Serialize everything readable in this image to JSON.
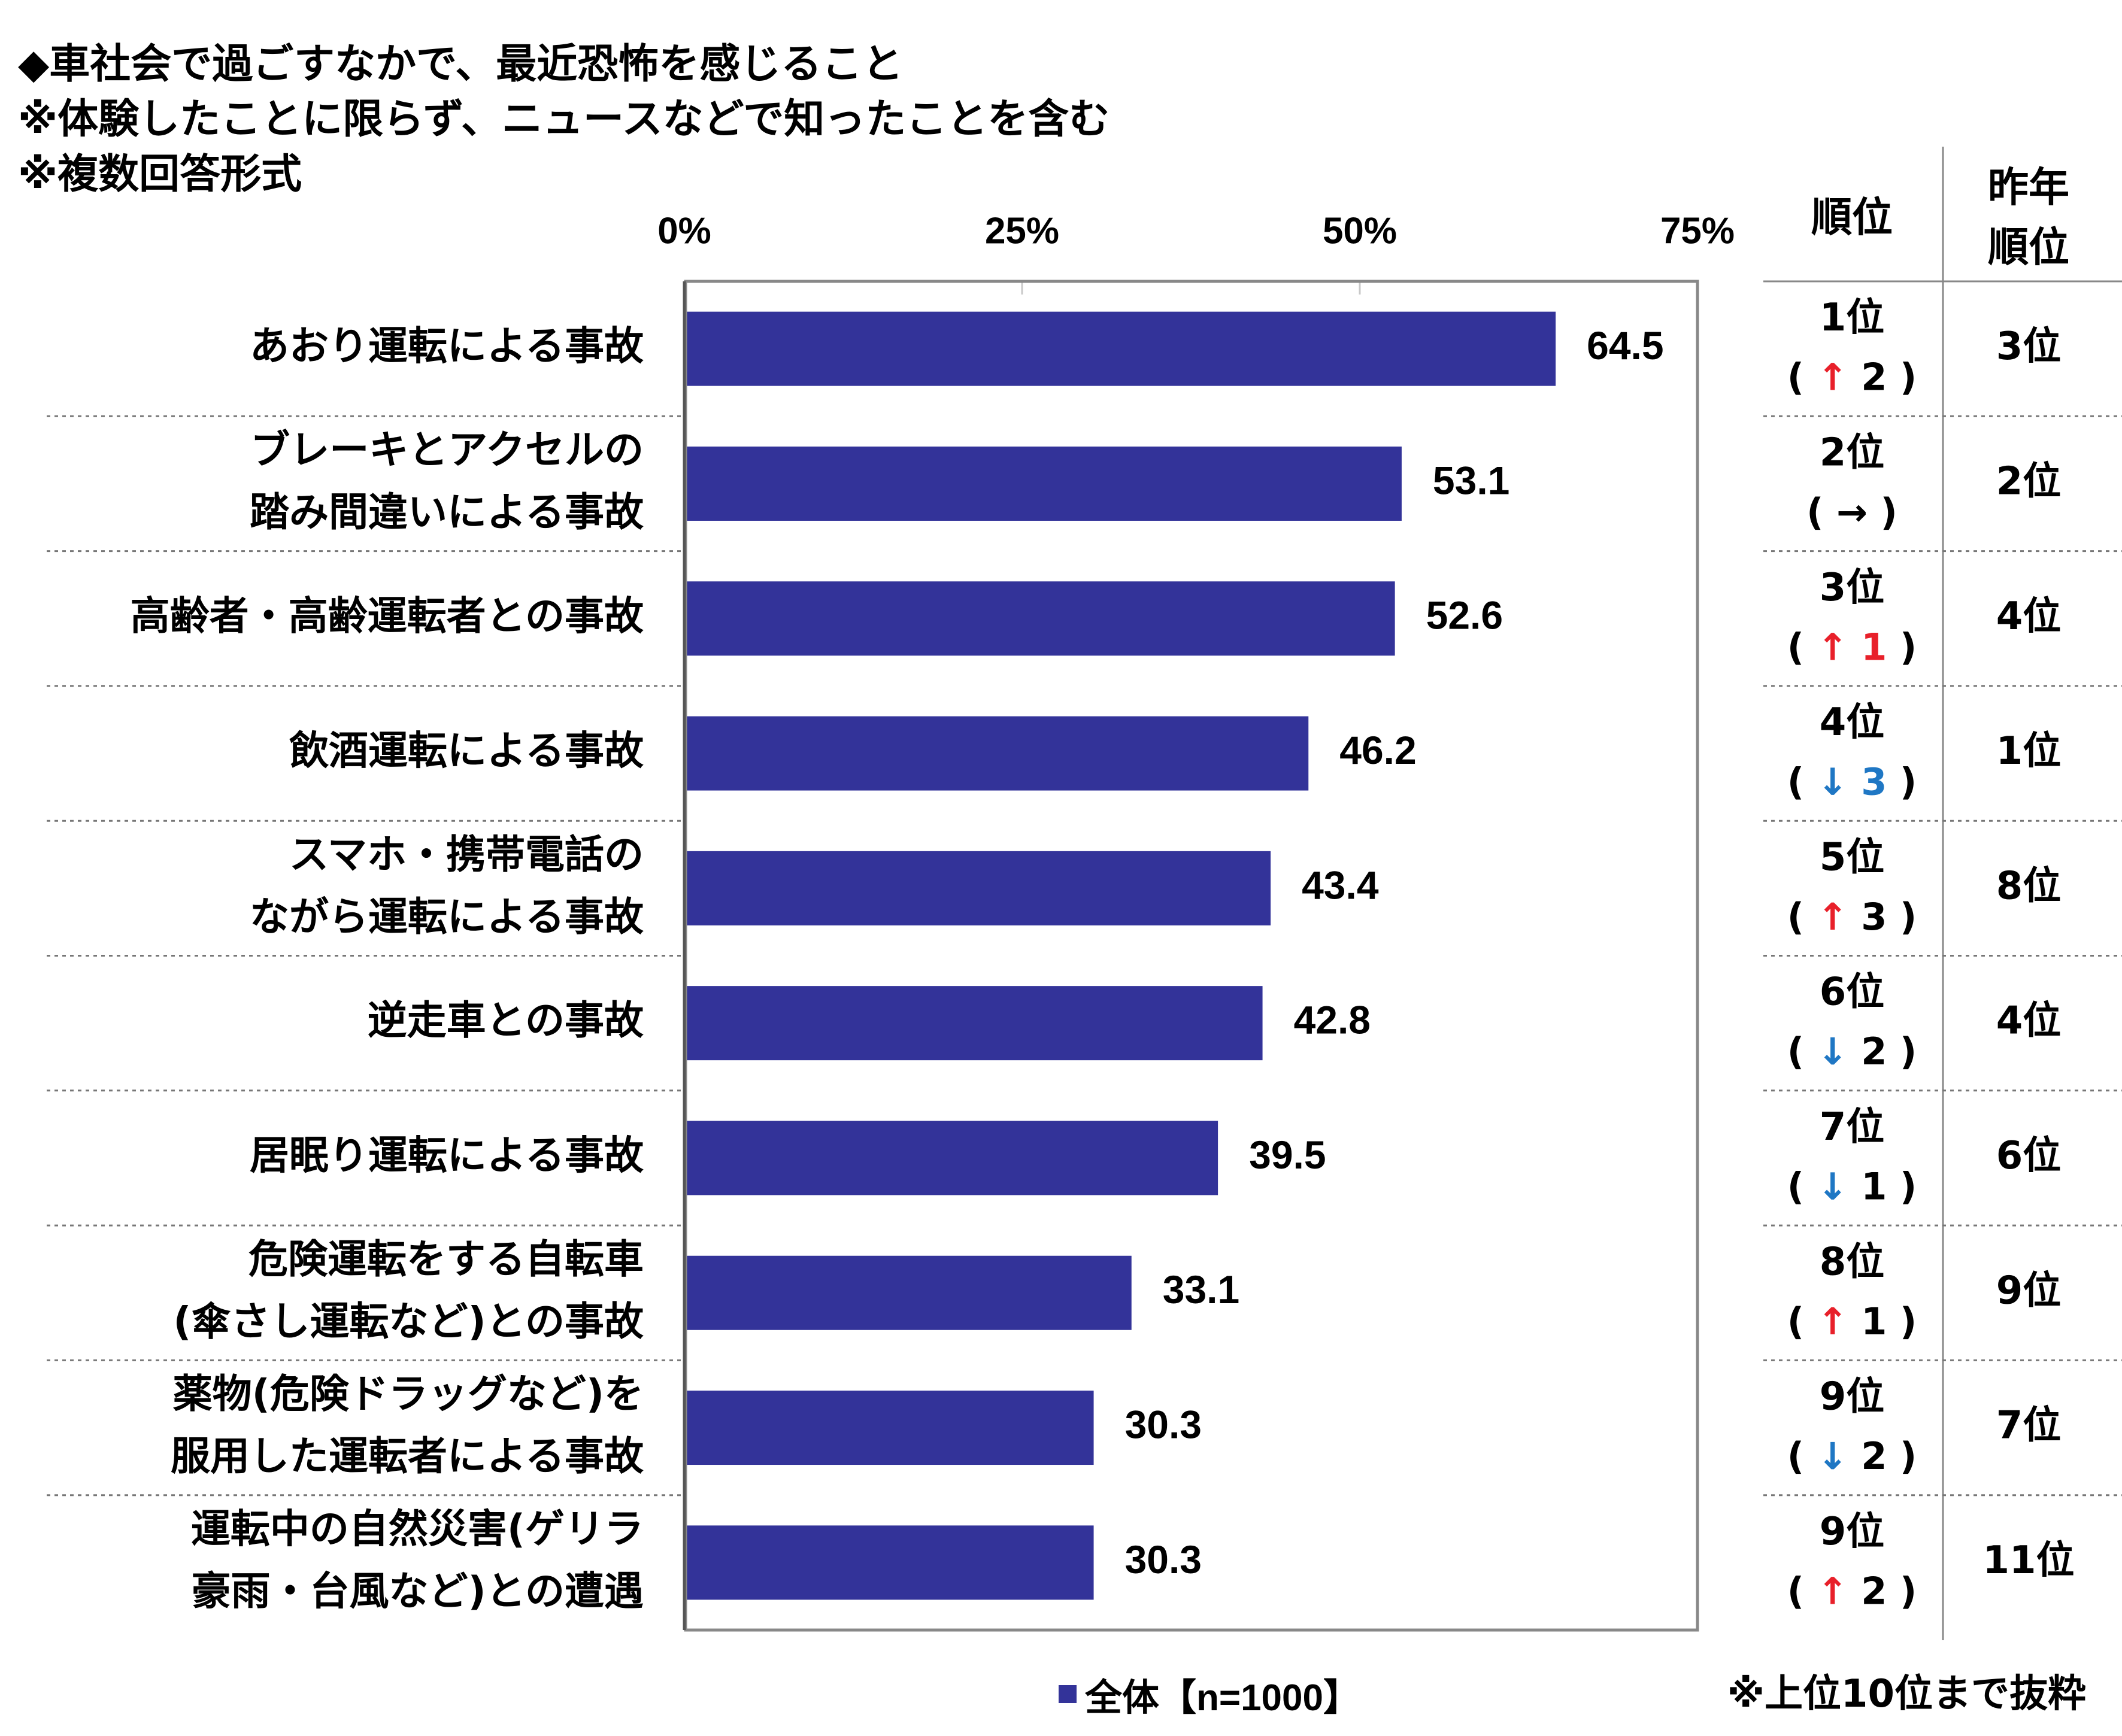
{
  "title_lines": [
    "◆車社会で過ごすなかで、最近恐怖を感じること",
    "※体験したことに限らず、ニュースなどで知ったことを含む",
    "※複数回答形式"
  ],
  "headers": {
    "rank": "順位",
    "last_year_rank": [
      "昨年",
      "順位"
    ]
  },
  "legend": {
    "label": "全体【n=1000】",
    "color": "#333399"
  },
  "footnote": "※上位10位まで抜粋",
  "colors": {
    "bar": "#333399",
    "up": "#e8202a",
    "down": "#1f77c4",
    "axis": "#888888"
  },
  "chart_data": {
    "type": "bar",
    "orientation": "horizontal",
    "xlim": [
      0,
      75
    ],
    "x_ticks": [
      "0%",
      "25%",
      "50%",
      "75%"
    ],
    "x_tick_values": [
      0,
      25,
      50,
      75
    ],
    "series": [
      {
        "name": "全体【n=1000】",
        "values": [
          64.5,
          53.1,
          52.6,
          46.2,
          43.4,
          42.8,
          39.5,
          33.1,
          30.3,
          30.3
        ]
      }
    ],
    "value_labels": [
      "64.5",
      "53.1",
      "52.6",
      "46.2",
      "43.4",
      "42.8",
      "39.5",
      "33.1",
      "30.3",
      "30.3"
    ],
    "categories": [
      [
        "あおり運転による事故"
      ],
      [
        "ブレーキとアクセルの",
        "踏み間違いによる事故"
      ],
      [
        "高齢者・高齢運転者との事故"
      ],
      [
        "飲酒運転による事故"
      ],
      [
        "スマホ・携帯電話の",
        "ながら運転による事故"
      ],
      [
        "逆走車との事故"
      ],
      [
        "居眠り運転による事故"
      ],
      [
        "危険運転をする自転車",
        "(傘さし運転など)との事故"
      ],
      [
        "薬物(危険ドラッグなど)を",
        "服用した運転者による事故"
      ],
      [
        "運転中の自然災害(ゲリラ",
        "豪雨・台風など)との遭遇"
      ]
    ],
    "rank": [
      "1位",
      "2位",
      "3位",
      "4位",
      "5位",
      "6位",
      "7位",
      "8位",
      "9位",
      "9位"
    ],
    "rank_change": [
      {
        "dir": "up",
        "arrow": "↑",
        "num": "2",
        "num_colored": false
      },
      {
        "dir": "same",
        "arrow": "→",
        "num": "",
        "num_colored": false
      },
      {
        "dir": "up",
        "arrow": "↑",
        "num": "1",
        "num_colored": true
      },
      {
        "dir": "down",
        "arrow": "↓",
        "num": "3",
        "num_colored": true
      },
      {
        "dir": "up",
        "arrow": "↑",
        "num": "3",
        "num_colored": false
      },
      {
        "dir": "down",
        "arrow": "↓",
        "num": "2",
        "num_colored": false
      },
      {
        "dir": "down",
        "arrow": "↓",
        "num": "1",
        "num_colored": false
      },
      {
        "dir": "up",
        "arrow": "↑",
        "num": "1",
        "num_colored": false
      },
      {
        "dir": "down",
        "arrow": "↓",
        "num": "2",
        "num_colored": false
      },
      {
        "dir": "up",
        "arrow": "↑",
        "num": "2",
        "num_colored": false
      }
    ],
    "last_year_rank": [
      "3位",
      "2位",
      "4位",
      "1位",
      "8位",
      "4位",
      "6位",
      "9位",
      "7位",
      "11位"
    ],
    "grid": true
  }
}
